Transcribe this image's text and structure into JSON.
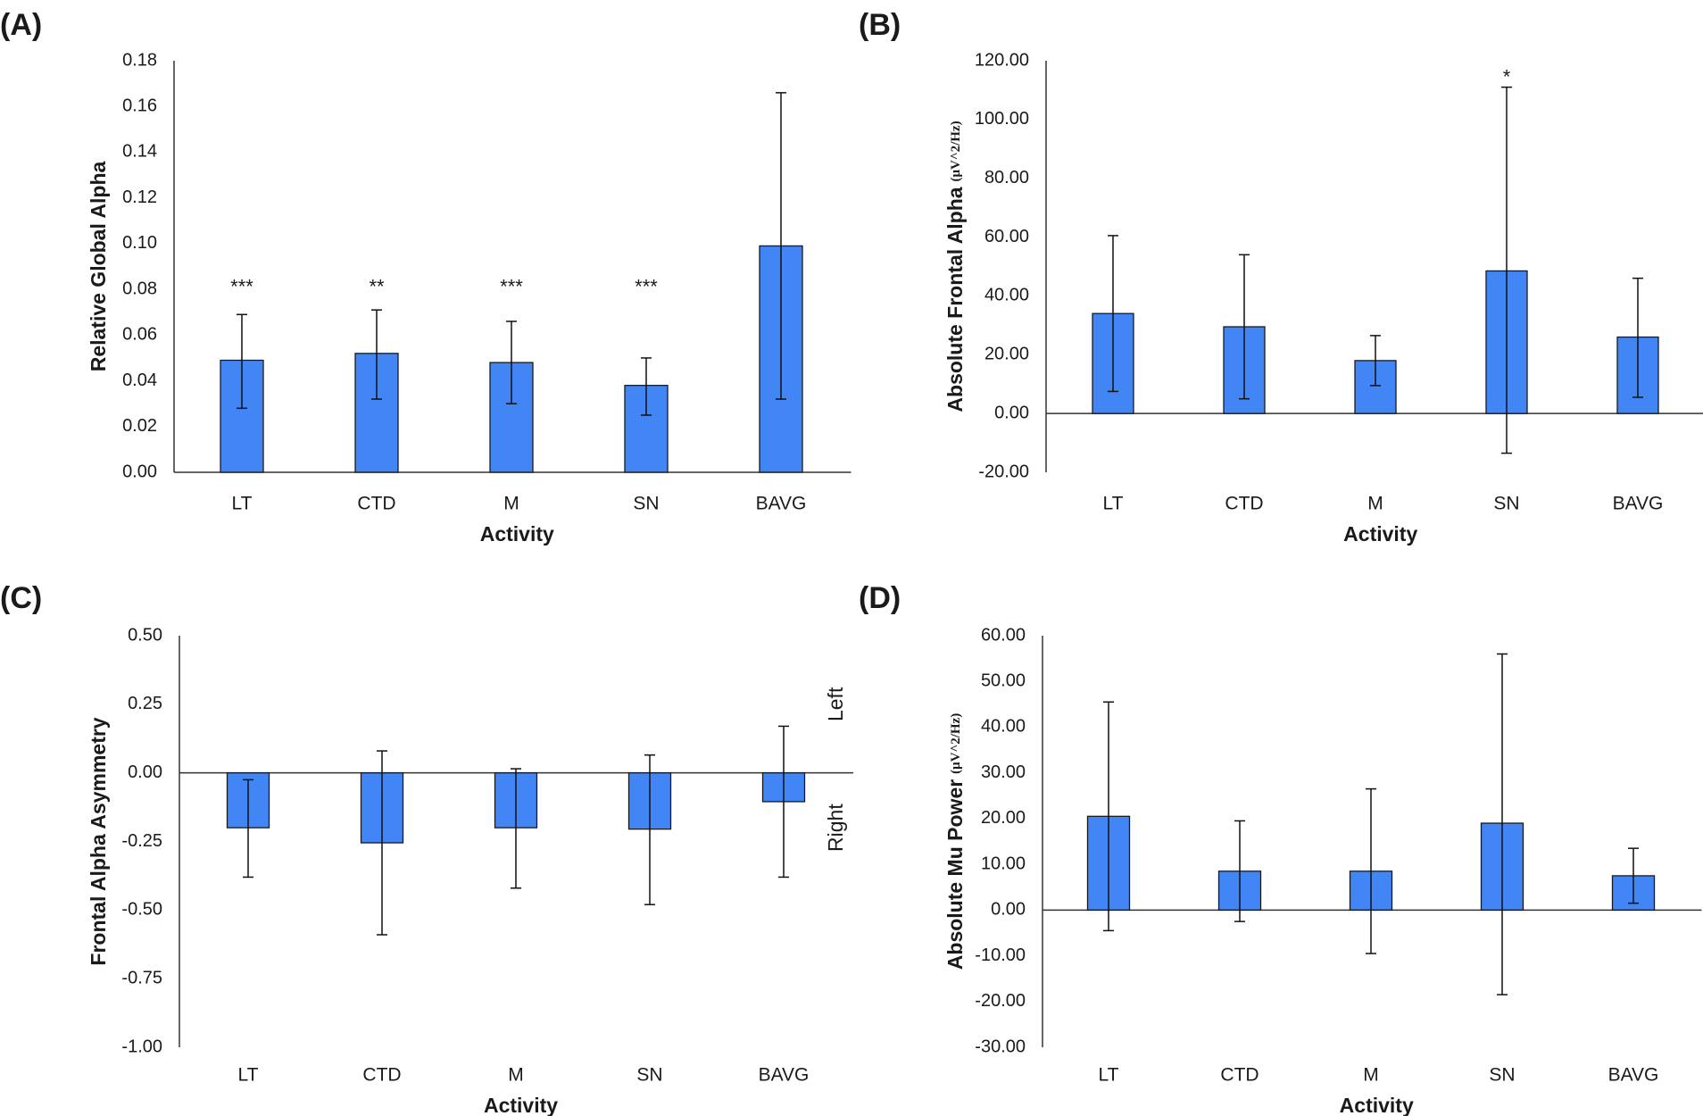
{
  "chart_data": [
    {
      "panel": "(A)",
      "type": "bar",
      "ylabel": "Relative Global Alpha",
      "xlabel": "Activity",
      "categories": [
        "LT",
        "CTD",
        "M",
        "SN",
        "BAVG"
      ],
      "values": [
        0.049,
        0.052,
        0.048,
        0.038,
        0.099
      ],
      "err_low": [
        0.028,
        0.032,
        0.03,
        0.025,
        0.032
      ],
      "err_high": [
        0.069,
        0.071,
        0.066,
        0.05,
        0.166
      ],
      "significance": [
        "***",
        "**",
        "***",
        "***",
        ""
      ],
      "ylim": [
        0,
        0.18
      ],
      "yticks": [
        "0.00",
        "0.02",
        "0.04",
        "0.06",
        "0.08",
        "0.10",
        "0.12",
        "0.14",
        "0.16",
        "0.18"
      ],
      "bar_color": "#4285f4"
    },
    {
      "panel": "(B)",
      "type": "bar",
      "ylabel": "Absolute Frontal Alpha",
      "yunit": "(μV^2/Hz)",
      "xlabel": "Activity",
      "categories": [
        "LT",
        "CTD",
        "M",
        "SN",
        "BAVG"
      ],
      "values": [
        34.0,
        29.5,
        18.0,
        48.5,
        26.0
      ],
      "err_low": [
        7.5,
        5.0,
        9.5,
        -13.5,
        5.5
      ],
      "err_high": [
        60.5,
        54.0,
        26.5,
        111.0,
        46.0
      ],
      "significance": [
        "",
        "",
        "",
        "*",
        ""
      ],
      "ylim": [
        -20,
        120
      ],
      "yticks": [
        "-20.00",
        "0.00",
        "20.00",
        "40.00",
        "60.00",
        "80.00",
        "100.00",
        "120.00"
      ],
      "bar_color": "#4285f4"
    },
    {
      "panel": "(C)",
      "type": "bar",
      "ylabel": "Frontal Alpha Asymmetry",
      "xlabel": "Activity",
      "categories": [
        "LT",
        "CTD",
        "M",
        "SN",
        "BAVG"
      ],
      "values": [
        -0.2,
        -0.255,
        -0.2,
        -0.205,
        -0.105
      ],
      "err_low": [
        -0.38,
        -0.59,
        -0.42,
        -0.48,
        -0.38
      ],
      "err_high": [
        -0.025,
        0.08,
        0.015,
        0.065,
        0.17
      ],
      "significance": [
        "",
        "",
        "",
        "",
        ""
      ],
      "ylim": [
        -1.0,
        0.5
      ],
      "yticks": [
        "-1.00",
        "-0.75",
        "-0.50",
        "-0.25",
        "0.00",
        "0.25",
        "0.50"
      ],
      "side_labels": [
        "Left",
        "Right"
      ],
      "bar_color": "#4285f4"
    },
    {
      "panel": "(D)",
      "type": "bar",
      "ylabel": "Absolute Mu Power",
      "yunit": "(μV^2/Hz)",
      "xlabel": "Activity",
      "categories": [
        "LT",
        "CTD",
        "M",
        "SN",
        "BAVG"
      ],
      "values": [
        20.5,
        8.5,
        8.5,
        19.0,
        7.5
      ],
      "err_low": [
        -4.5,
        -2.5,
        -9.5,
        -18.5,
        1.5
      ],
      "err_high": [
        45.5,
        19.5,
        26.5,
        56.0,
        13.5
      ],
      "significance": [
        "",
        "",
        "",
        "",
        ""
      ],
      "ylim": [
        -30,
        60
      ],
      "yticks": [
        "-30.00",
        "-20.00",
        "-10.00",
        "0.00",
        "10.00",
        "20.00",
        "30.00",
        "40.00",
        "50.00",
        "60.00"
      ],
      "bar_color": "#4285f4"
    }
  ]
}
